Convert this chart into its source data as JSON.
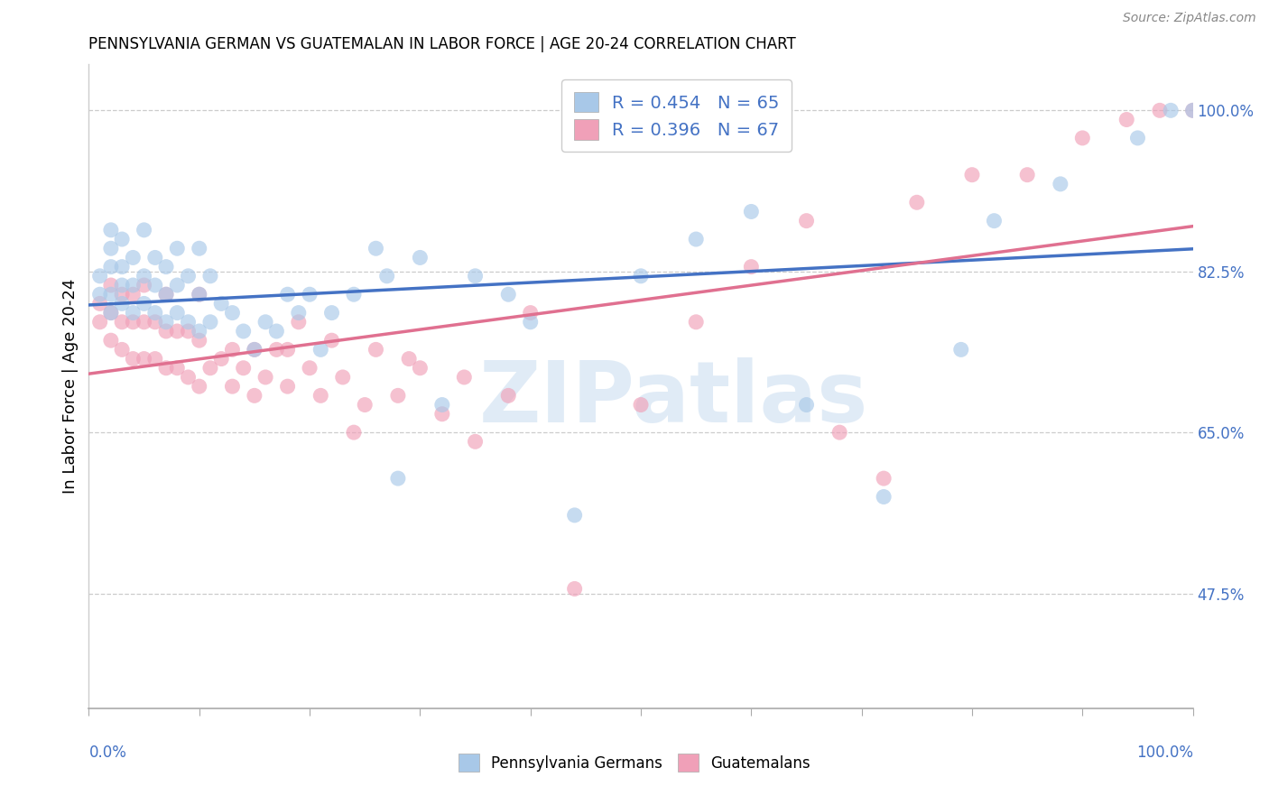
{
  "title": "PENNSYLVANIA GERMAN VS GUATEMALAN IN LABOR FORCE | AGE 20-24 CORRELATION CHART",
  "source": "Source: ZipAtlas.com",
  "ylabel": "In Labor Force | Age 20-24",
  "legend_label1": "Pennsylvania Germans",
  "legend_label2": "Guatemalans",
  "r1": 0.454,
  "n1": 65,
  "r2": 0.396,
  "n2": 67,
  "color_blue": "#A8C8E8",
  "color_pink": "#F0A0B8",
  "color_blue_line": "#4472C4",
  "color_pink_line": "#E07090",
  "color_ytick": "#4472C4",
  "watermark_color": "#C8DCF0",
  "bg_color": "#FFFFFF",
  "blue_x": [
    0.01,
    0.01,
    0.02,
    0.02,
    0.02,
    0.02,
    0.02,
    0.03,
    0.03,
    0.03,
    0.03,
    0.04,
    0.04,
    0.04,
    0.05,
    0.05,
    0.05,
    0.06,
    0.06,
    0.06,
    0.07,
    0.07,
    0.07,
    0.08,
    0.08,
    0.08,
    0.09,
    0.09,
    0.1,
    0.1,
    0.1,
    0.11,
    0.11,
    0.12,
    0.13,
    0.14,
    0.15,
    0.16,
    0.17,
    0.18,
    0.19,
    0.2,
    0.21,
    0.22,
    0.24,
    0.26,
    0.27,
    0.28,
    0.3,
    0.32,
    0.35,
    0.38,
    0.4,
    0.44,
    0.5,
    0.55,
    0.6,
    0.65,
    0.72,
    0.79,
    0.82,
    0.88,
    0.95,
    0.98,
    1.0
  ],
  "blue_y": [
    0.8,
    0.82,
    0.78,
    0.8,
    0.83,
    0.85,
    0.87,
    0.79,
    0.81,
    0.83,
    0.86,
    0.78,
    0.81,
    0.84,
    0.79,
    0.82,
    0.87,
    0.78,
    0.81,
    0.84,
    0.77,
    0.8,
    0.83,
    0.78,
    0.81,
    0.85,
    0.77,
    0.82,
    0.76,
    0.8,
    0.85,
    0.77,
    0.82,
    0.79,
    0.78,
    0.76,
    0.74,
    0.77,
    0.76,
    0.8,
    0.78,
    0.8,
    0.74,
    0.78,
    0.8,
    0.85,
    0.82,
    0.6,
    0.84,
    0.68,
    0.82,
    0.8,
    0.77,
    0.56,
    0.82,
    0.86,
    0.89,
    0.68,
    0.58,
    0.74,
    0.88,
    0.92,
    0.97,
    1.0,
    1.0
  ],
  "pink_x": [
    0.01,
    0.01,
    0.02,
    0.02,
    0.02,
    0.03,
    0.03,
    0.03,
    0.04,
    0.04,
    0.04,
    0.05,
    0.05,
    0.05,
    0.06,
    0.06,
    0.07,
    0.07,
    0.07,
    0.08,
    0.08,
    0.09,
    0.09,
    0.1,
    0.1,
    0.1,
    0.11,
    0.12,
    0.13,
    0.13,
    0.14,
    0.15,
    0.15,
    0.16,
    0.17,
    0.18,
    0.18,
    0.19,
    0.2,
    0.21,
    0.22,
    0.23,
    0.24,
    0.25,
    0.26,
    0.28,
    0.29,
    0.3,
    0.32,
    0.34,
    0.35,
    0.38,
    0.4,
    0.44,
    0.5,
    0.55,
    0.6,
    0.65,
    0.68,
    0.72,
    0.75,
    0.8,
    0.85,
    0.9,
    0.94,
    0.97,
    1.0
  ],
  "pink_y": [
    0.77,
    0.79,
    0.75,
    0.78,
    0.81,
    0.74,
    0.77,
    0.8,
    0.73,
    0.77,
    0.8,
    0.73,
    0.77,
    0.81,
    0.73,
    0.77,
    0.72,
    0.76,
    0.8,
    0.72,
    0.76,
    0.71,
    0.76,
    0.7,
    0.75,
    0.8,
    0.72,
    0.73,
    0.7,
    0.74,
    0.72,
    0.69,
    0.74,
    0.71,
    0.74,
    0.7,
    0.74,
    0.77,
    0.72,
    0.69,
    0.75,
    0.71,
    0.65,
    0.68,
    0.74,
    0.69,
    0.73,
    0.72,
    0.67,
    0.71,
    0.64,
    0.69,
    0.78,
    0.48,
    0.68,
    0.77,
    0.83,
    0.88,
    0.65,
    0.6,
    0.9,
    0.93,
    0.93,
    0.97,
    0.99,
    1.0,
    1.0
  ],
  "xlim": [
    0.0,
    1.0
  ],
  "ylim_low": 0.35,
  "ylim_high": 1.05,
  "ytick_vals": [
    0.475,
    0.65,
    0.825,
    1.0
  ],
  "ytick_labels": [
    "47.5%",
    "65.0%",
    "82.5%",
    "100.0%"
  ],
  "xtick_vals": [
    0.0,
    0.1,
    0.2,
    0.3,
    0.4,
    0.5,
    0.6,
    0.7,
    0.8,
    0.9,
    1.0
  ],
  "grid_color": "#CCCCCC",
  "spine_color": "#AAAAAA"
}
